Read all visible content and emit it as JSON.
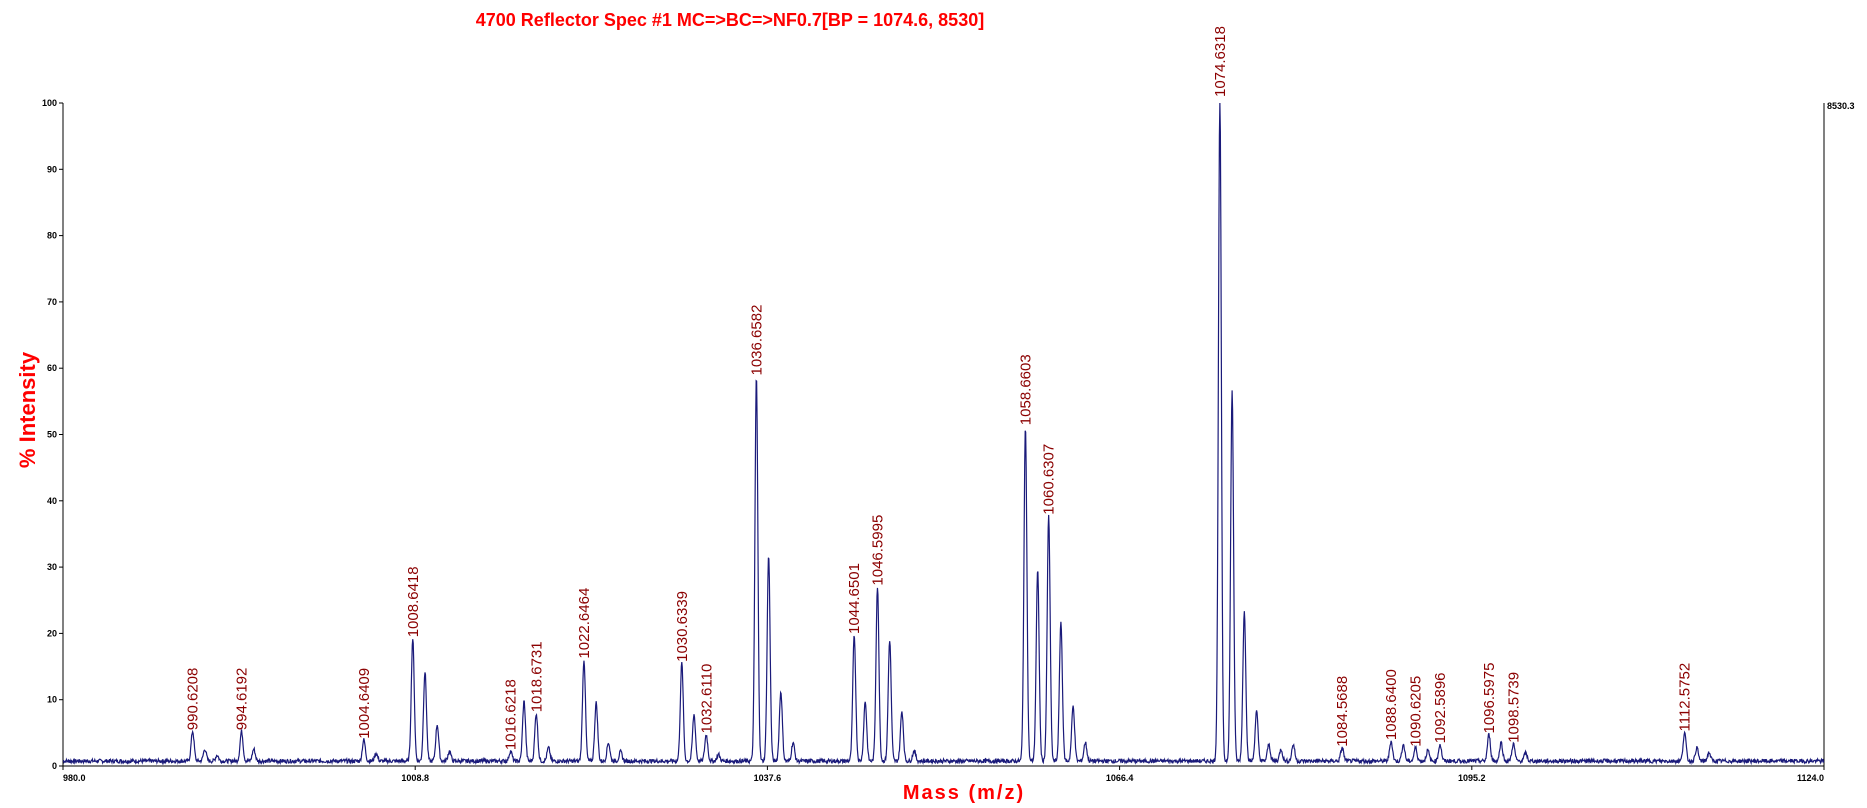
{
  "chart_data": {
    "type": "line",
    "title": "4700 Reflector Spec #1 MC=>BC=>NF0.7[BP = 1074.6, 8530]",
    "xlabel": "Mass (m/z)",
    "ylabel": "% Intensity",
    "xlim": [
      980.0,
      1124.0
    ],
    "ylim": [
      0,
      100
    ],
    "x_tick_labels": [
      "980.0",
      "1008.8",
      "1037.6",
      "1066.4",
      "1095.2",
      "1124.0"
    ],
    "y_ticks": [
      0,
      10,
      20,
      30,
      40,
      50,
      60,
      70,
      80,
      90,
      100
    ],
    "right_axis_label": "8530.3",
    "grid": false,
    "colors": {
      "trace": "#1a1a7a",
      "title": "#ff0000",
      "peak_label": "#8b0000",
      "axis": "#000000"
    },
    "peaks": [
      {
        "x": 990.6,
        "y": 4.5,
        "label": "990.6208"
      },
      {
        "x": 991.6,
        "y": 1.8,
        "label": ""
      },
      {
        "x": 992.6,
        "y": 0.9,
        "label": ""
      },
      {
        "x": 994.6,
        "y": 4.5,
        "label": "994.6192"
      },
      {
        "x": 995.6,
        "y": 1.8,
        "label": ""
      },
      {
        "x": 1004.6,
        "y": 3.2,
        "label": "1004.6409"
      },
      {
        "x": 1005.6,
        "y": 1.2,
        "label": ""
      },
      {
        "x": 1008.6,
        "y": 18.5,
        "label": "1008.6418"
      },
      {
        "x": 1009.6,
        "y": 13.5,
        "label": ""
      },
      {
        "x": 1010.6,
        "y": 5.5,
        "label": ""
      },
      {
        "x": 1011.6,
        "y": 1.5,
        "label": ""
      },
      {
        "x": 1016.6,
        "y": 1.5,
        "label": "1016.6218"
      },
      {
        "x": 1017.7,
        "y": 9.0,
        "label": ""
      },
      {
        "x": 1018.7,
        "y": 7.2,
        "label": "1018.6731"
      },
      {
        "x": 1019.7,
        "y": 2.0,
        "label": ""
      },
      {
        "x": 1022.6,
        "y": 15.3,
        "label": "1022.6464"
      },
      {
        "x": 1023.6,
        "y": 8.8,
        "label": ""
      },
      {
        "x": 1024.6,
        "y": 2.8,
        "label": ""
      },
      {
        "x": 1025.6,
        "y": 1.4,
        "label": ""
      },
      {
        "x": 1030.6,
        "y": 14.8,
        "label": "1030.6339"
      },
      {
        "x": 1031.6,
        "y": 7.0,
        "label": ""
      },
      {
        "x": 1032.6,
        "y": 4.0,
        "label": "1032.6110"
      },
      {
        "x": 1033.6,
        "y": 1.0,
        "label": ""
      },
      {
        "x": 1036.7,
        "y": 58.0,
        "label": "1036.6582"
      },
      {
        "x": 1037.7,
        "y": 31.0,
        "label": ""
      },
      {
        "x": 1038.7,
        "y": 10.5,
        "label": ""
      },
      {
        "x": 1039.7,
        "y": 2.8,
        "label": ""
      },
      {
        "x": 1044.7,
        "y": 19.0,
        "label": "1044.6501"
      },
      {
        "x": 1045.6,
        "y": 9.0,
        "label": ""
      },
      {
        "x": 1046.6,
        "y": 26.3,
        "label": "1046.5995"
      },
      {
        "x": 1047.6,
        "y": 18.3,
        "label": ""
      },
      {
        "x": 1048.6,
        "y": 7.5,
        "label": ""
      },
      {
        "x": 1049.6,
        "y": 1.6,
        "label": ""
      },
      {
        "x": 1058.7,
        "y": 50.5,
        "label": "1058.6603"
      },
      {
        "x": 1059.7,
        "y": 28.7,
        "label": ""
      },
      {
        "x": 1060.6,
        "y": 37.0,
        "label": "1060.6307"
      },
      {
        "x": 1061.6,
        "y": 21.0,
        "label": ""
      },
      {
        "x": 1062.6,
        "y": 8.3,
        "label": ""
      },
      {
        "x": 1063.6,
        "y": 2.8,
        "label": ""
      },
      {
        "x": 1074.6,
        "y": 100.0,
        "label": "1074.6318"
      },
      {
        "x": 1075.6,
        "y": 55.8,
        "label": ""
      },
      {
        "x": 1076.6,
        "y": 22.5,
        "label": ""
      },
      {
        "x": 1077.6,
        "y": 7.5,
        "label": ""
      },
      {
        "x": 1078.6,
        "y": 2.5,
        "label": ""
      },
      {
        "x": 1079.6,
        "y": 1.8,
        "label": ""
      },
      {
        "x": 1080.6,
        "y": 2.5,
        "label": ""
      },
      {
        "x": 1084.6,
        "y": 2.0,
        "label": "1084.5688"
      },
      {
        "x": 1088.6,
        "y": 3.0,
        "label": "1088.6400"
      },
      {
        "x": 1089.6,
        "y": 2.5,
        "label": ""
      },
      {
        "x": 1090.6,
        "y": 2.0,
        "label": "1090.6205"
      },
      {
        "x": 1091.6,
        "y": 1.6,
        "label": ""
      },
      {
        "x": 1092.6,
        "y": 2.5,
        "label": "1092.5896"
      },
      {
        "x": 1096.6,
        "y": 4.0,
        "label": "1096.5975"
      },
      {
        "x": 1097.6,
        "y": 2.8,
        "label": ""
      },
      {
        "x": 1098.6,
        "y": 2.6,
        "label": "1098.5739"
      },
      {
        "x": 1099.6,
        "y": 1.2,
        "label": ""
      },
      {
        "x": 1112.6,
        "y": 4.3,
        "label": "1112.5752"
      },
      {
        "x": 1113.6,
        "y": 2.0,
        "label": ""
      },
      {
        "x": 1114.6,
        "y": 1.3,
        "label": ""
      }
    ]
  }
}
